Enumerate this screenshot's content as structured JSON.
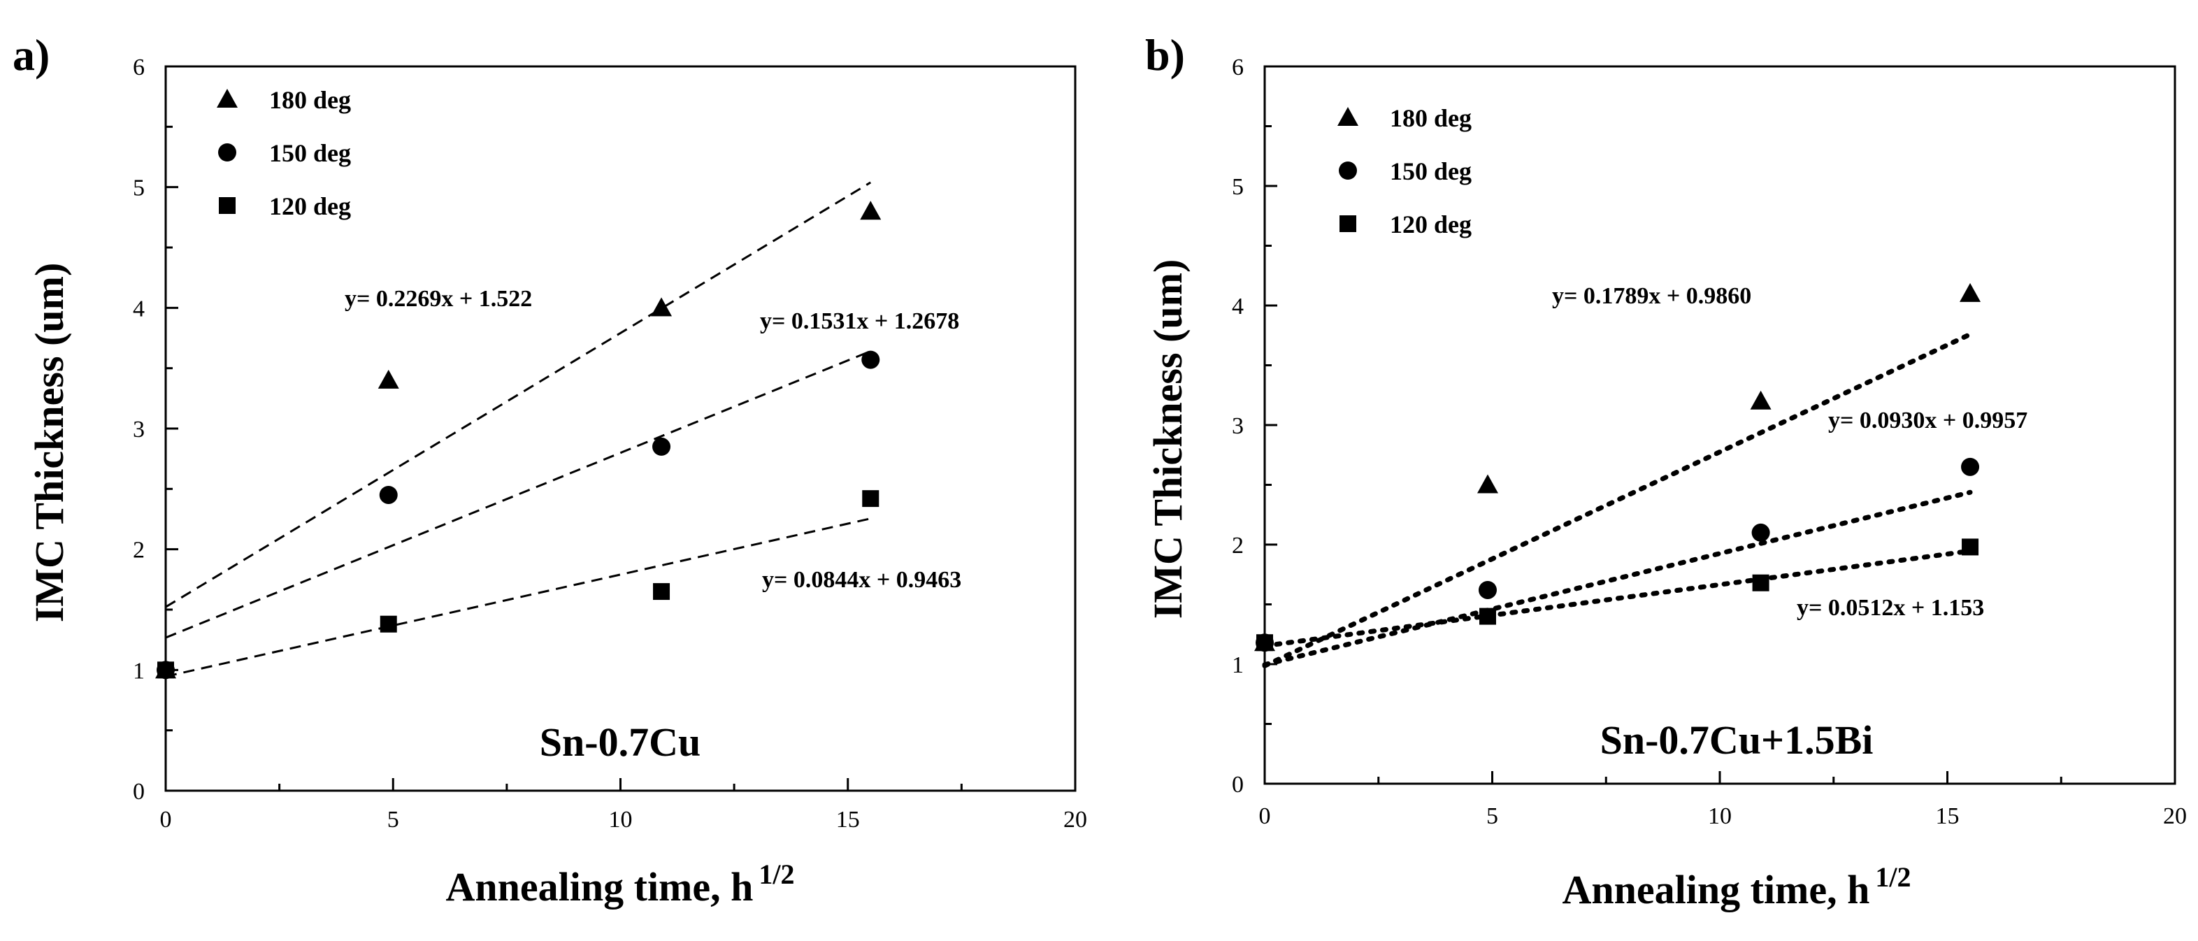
{
  "chart_data": [
    {
      "type": "scatter",
      "panel": "a)",
      "title": "Sn-0.7Cu",
      "xlabel": "Annealing time, h",
      "xlabel_sup": "1/2",
      "ylabel": "IMC Thickness (um)",
      "xlim": [
        0,
        20
      ],
      "ylim": [
        0,
        6
      ],
      "xticks": [
        0,
        5,
        10,
        15,
        20
      ],
      "yticks": [
        0,
        1,
        2,
        3,
        4,
        5,
        6
      ],
      "fit_style": "dashed",
      "series": [
        {
          "name": "180 deg",
          "marker": "triangle",
          "x": [
            0,
            4.9,
            10.9,
            15.5
          ],
          "y": [
            1.0,
            3.4,
            4.0,
            4.8
          ],
          "fit": {
            "slope": 0.2269,
            "intercept": 1.522,
            "label": "y= 0.2269x + 1.522"
          }
        },
        {
          "name": "150 deg",
          "marker": "circle",
          "x": [
            0,
            4.9,
            10.9,
            15.5
          ],
          "y": [
            1.0,
            2.45,
            2.85,
            3.57
          ],
          "fit": {
            "slope": 0.1531,
            "intercept": 1.2678,
            "label": "y= 0.1531x + 1.2678"
          }
        },
        {
          "name": "120 deg",
          "marker": "square",
          "x": [
            0,
            4.9,
            10.9,
            15.5
          ],
          "y": [
            1.0,
            1.38,
            1.65,
            2.42
          ],
          "fit": {
            "slope": 0.0844,
            "intercept": 0.9463,
            "label": "y= 0.0844x + 0.9463"
          }
        }
      ]
    },
    {
      "type": "scatter",
      "panel": "b)",
      "title": "Sn-0.7Cu+1.5Bi",
      "xlabel": "Annealing time, h",
      "xlabel_sup": "1/2",
      "ylabel": "IMC Thickness (um)",
      "xlim": [
        0,
        20
      ],
      "ylim": [
        0,
        6
      ],
      "xticks": [
        0,
        5,
        10,
        15,
        20
      ],
      "yticks": [
        0,
        1,
        2,
        3,
        4,
        5,
        6
      ],
      "fit_style": "dotted",
      "series": [
        {
          "name": "180 deg",
          "marker": "triangle",
          "x": [
            0,
            4.9,
            10.9,
            15.5
          ],
          "y": [
            1.18,
            2.5,
            3.2,
            4.1
          ],
          "fit": {
            "slope": 0.1789,
            "intercept": 0.986,
            "label": "y= 0.1789x + 0.9860"
          }
        },
        {
          "name": "150 deg",
          "marker": "circle",
          "x": [
            0,
            4.9,
            10.9,
            15.5
          ],
          "y": [
            1.18,
            1.62,
            2.1,
            2.65
          ],
          "fit": {
            "slope": 0.093,
            "intercept": 0.9957,
            "label": "y= 0.0930x + 0.9957"
          }
        },
        {
          "name": "120 deg",
          "marker": "square",
          "x": [
            0,
            4.9,
            10.9,
            15.5
          ],
          "y": [
            1.18,
            1.4,
            1.68,
            1.98
          ],
          "fit": {
            "slope": 0.0512,
            "intercept": 1.153,
            "label": "y= 0.0512x + 1.153"
          }
        }
      ]
    }
  ]
}
